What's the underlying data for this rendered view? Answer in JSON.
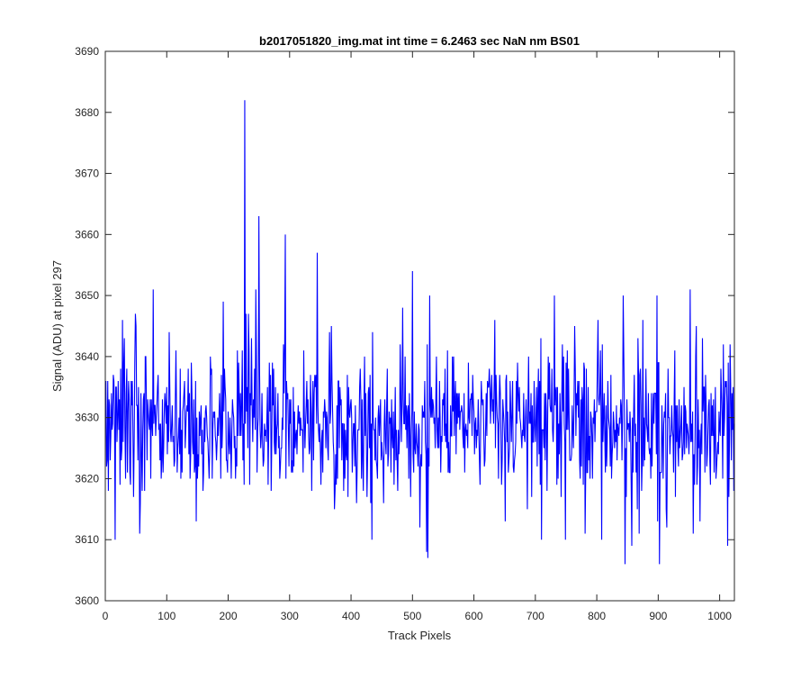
{
  "chart_data": {
    "type": "line",
    "title": "b2017051820_img.mat int time = 6.2463 sec  NaN nm BS01",
    "xlabel": "Track Pixels",
    "ylabel": "Signal (ADU) at pixel 297",
    "xlim": [
      0,
      1024
    ],
    "ylim": [
      3600,
      3690
    ],
    "xticks": [
      0,
      100,
      200,
      300,
      400,
      500,
      600,
      700,
      800,
      900,
      1000
    ],
    "yticks": [
      3600,
      3610,
      3620,
      3630,
      3640,
      3650,
      3660,
      3670,
      3680,
      3690
    ],
    "grid": false,
    "legend": "none",
    "series": [
      {
        "color": "#0000ff",
        "x_start": 1,
        "x_step": 1,
        "mean": 3630,
        "noise_range": [
          3606,
          3651
        ],
        "peaks": [
          {
            "x": 227,
            "y": 3682
          },
          {
            "x": 250,
            "y": 3663
          },
          {
            "x": 293,
            "y": 3660
          },
          {
            "x": 345,
            "y": 3657
          },
          {
            "x": 500,
            "y": 3654
          },
          {
            "x": 525,
            "y": 3607
          },
          {
            "x": 523,
            "y": 3608
          },
          {
            "x": 846,
            "y": 3606
          },
          {
            "x": 902,
            "y": 3606
          },
          {
            "x": 78,
            "y": 3651
          },
          {
            "x": 56,
            "y": 3611
          },
          {
            "x": 1013,
            "y": 3609
          }
        ]
      }
    ]
  }
}
